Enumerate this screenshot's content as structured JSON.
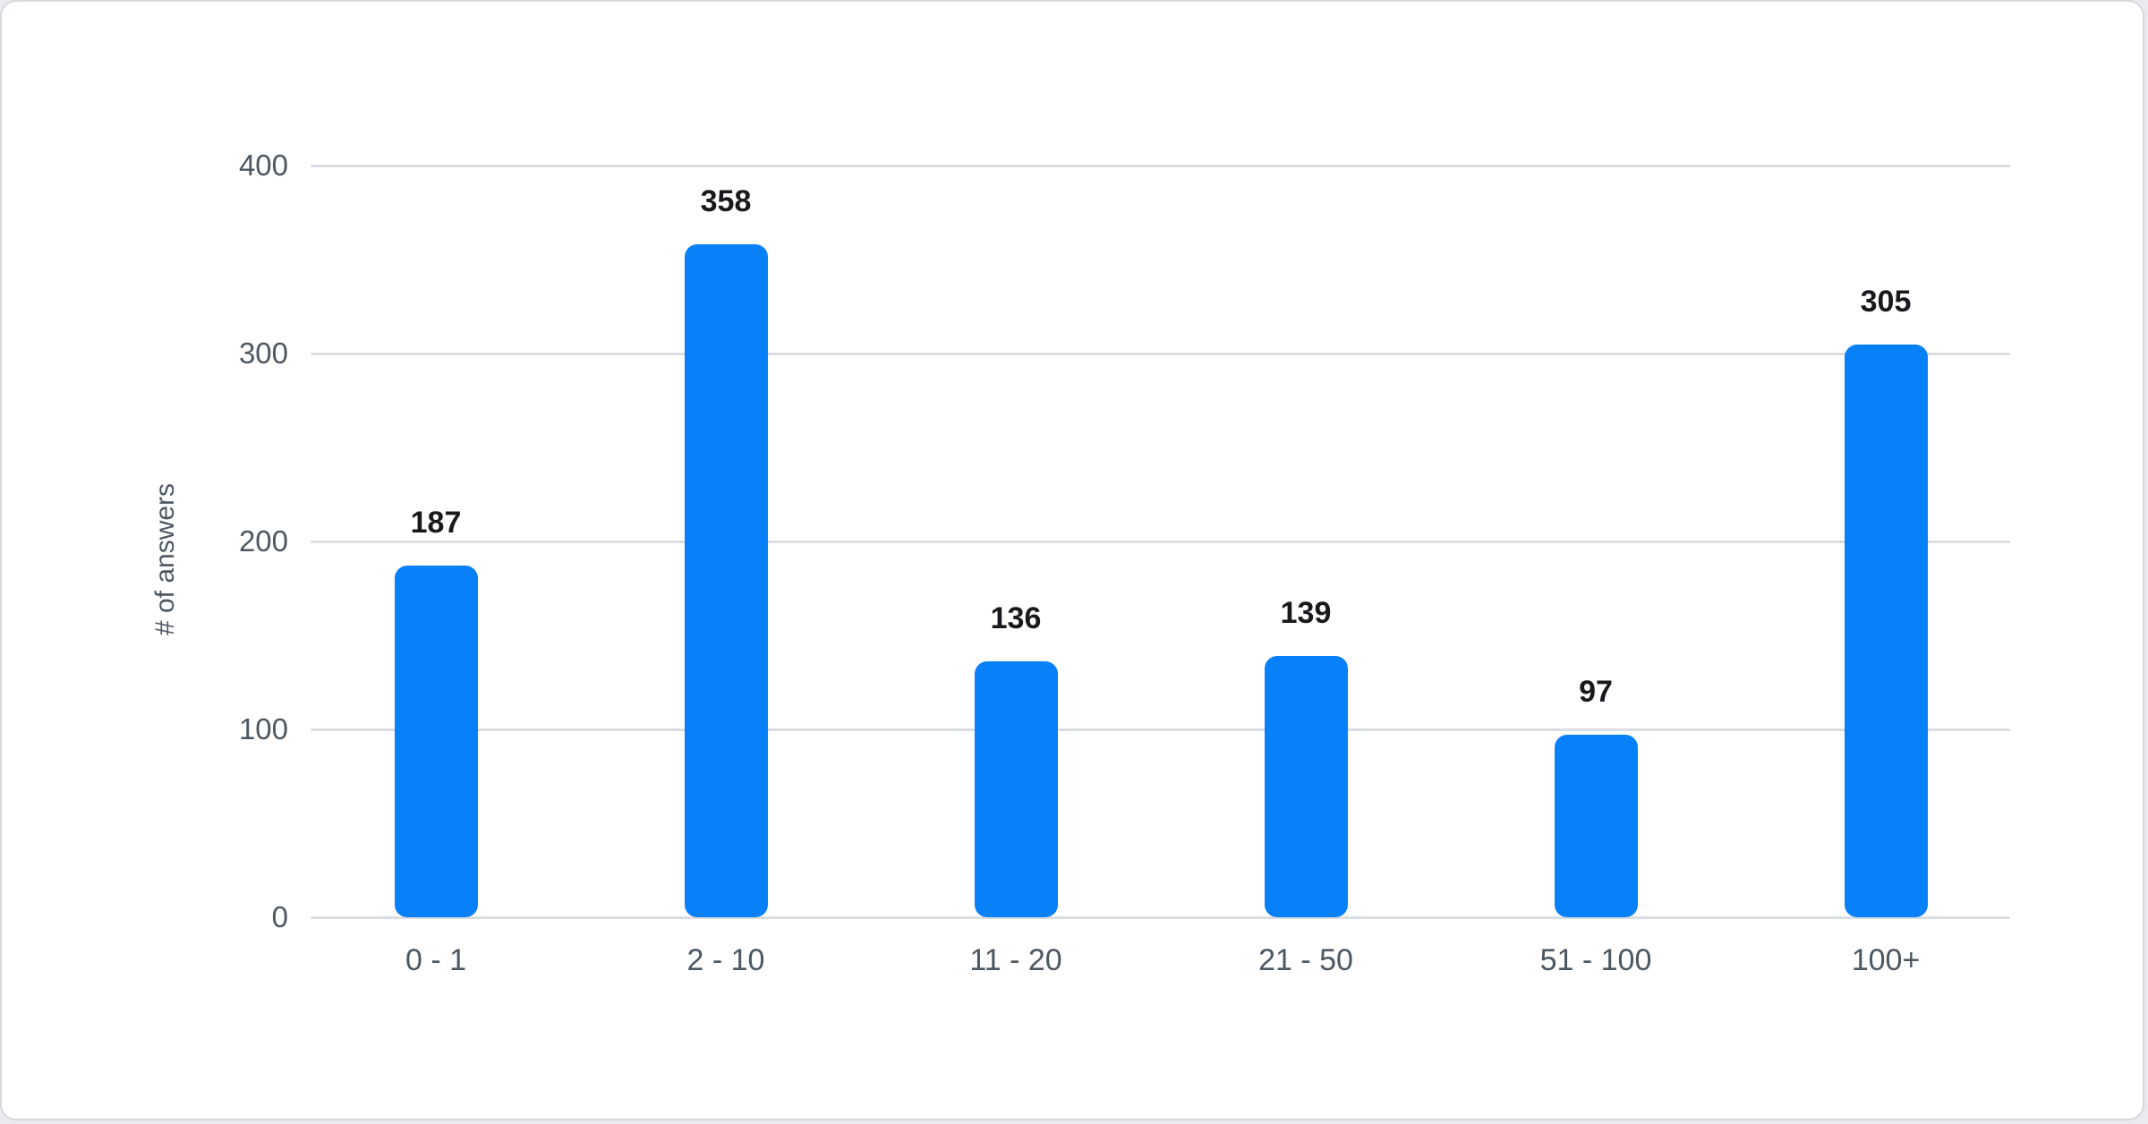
{
  "chart_data": {
    "type": "bar",
    "title": "",
    "categories": [
      "0 - 1",
      "2 - 10",
      "11 - 20",
      "21 - 50",
      "51 - 100",
      "100+"
    ],
    "values": [
      187,
      358,
      136,
      139,
      97,
      305
    ],
    "value_labels": [
      "187",
      "358",
      "136",
      "139",
      "97",
      "305"
    ],
    "xlabel": "",
    "ylabel": "# of answers",
    "yticks": [
      0,
      100,
      200,
      300,
      400
    ],
    "ytick_labels": [
      "0",
      "100",
      "200",
      "300",
      "400"
    ],
    "ylim": [
      0,
      400
    ],
    "grid": true,
    "legend_position": "none",
    "colors": {
      "bar": "#0880f8",
      "value_label": "#17191d",
      "axis_text": "#4d5761",
      "gridline": "#dadde1",
      "card_background": "#ffffff",
      "card_border": "#d5d9dd"
    }
  }
}
